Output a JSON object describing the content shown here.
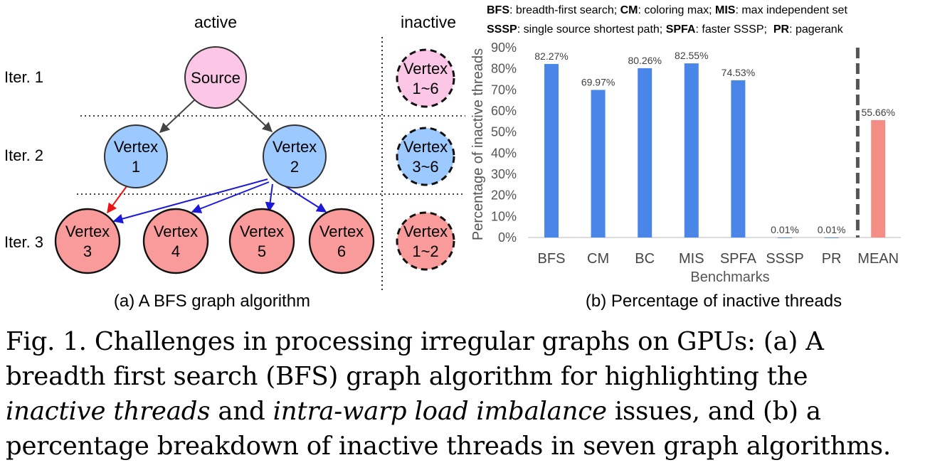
{
  "graph": {
    "col_active": "active",
    "col_inactive": "inactive",
    "iter_labels": [
      "Iter. 1",
      "Iter. 2",
      "Iter. 3"
    ],
    "nodes": [
      {
        "line1": "Source",
        "line2": ""
      },
      {
        "line1": "Vertex",
        "line2": "1"
      },
      {
        "line1": "Vertex",
        "line2": "2"
      },
      {
        "line1": "Vertex",
        "line2": "3"
      },
      {
        "line1": "Vertex",
        "line2": "4"
      },
      {
        "line1": "Vertex",
        "line2": "5"
      },
      {
        "line1": "Vertex",
        "line2": "6"
      }
    ],
    "inactive_nodes": [
      {
        "line1": "Vertex",
        "line2": "1~6"
      },
      {
        "line1": "Vertex",
        "line2": "3~6"
      },
      {
        "line1": "Vertex",
        "line2": "1~2"
      }
    ],
    "subcaption": "(a) A BFS graph algorithm"
  },
  "legend": {
    "line1": [
      {
        "abbr": "BFS",
        "desc": ": breadth-first search; "
      },
      {
        "abbr": "CM",
        "desc": ": coloring max; "
      },
      {
        "abbr": "MIS",
        "desc": ": max independent set"
      }
    ],
    "line2": [
      {
        "abbr": "SSSP",
        "desc": ": single source shortest path; "
      },
      {
        "abbr": "SPFA",
        "desc": ": faster SSSP;  "
      },
      {
        "abbr": "PR",
        "desc": ": pagerank"
      }
    ]
  },
  "chart_data": {
    "type": "bar",
    "categories": [
      "BFS",
      "CM",
      "BC",
      "MIS",
      "SPFA",
      "SSSP",
      "PR",
      "MEAN"
    ],
    "values": [
      82.27,
      69.97,
      80.26,
      82.55,
      74.53,
      0.01,
      0.01,
      55.66
    ],
    "value_labels": [
      "82.27%",
      "69.97%",
      "80.26%",
      "82.55%",
      "74.53%",
      "0.01%",
      "0.01%",
      "55.66%"
    ],
    "yticks": [
      "0%",
      "10%",
      "20%",
      "30%",
      "40%",
      "50%",
      "60%",
      "70%",
      "80%",
      "90%"
    ],
    "ylim": [
      0,
      90
    ],
    "xlabel": "Benchmarks",
    "ylabel": "Percentage of inactive threads",
    "bar_color": "#4a86e8",
    "mean_color": "#f28e86",
    "grid": false,
    "subcaption": "(b) Percentage of inactive threads"
  },
  "caption": {
    "line1": "Fig. 1. Challenges in processing irregular graphs on GPUs: (a) A",
    "line2": "breadth first search (BFS) graph algorithm for highlighting the",
    "line3_em1": "inactive threads",
    "line3_mid": " and ",
    "line3_em2": "intra-warp load imbalance",
    "line3_end": " issues, and (b) a",
    "line4": "percentage breakdown of inactive threads in seven graph algorithms."
  },
  "colors": {
    "pink": "#fcc6e6",
    "blue": "#9cc9ff",
    "red": "#f99b9b"
  }
}
